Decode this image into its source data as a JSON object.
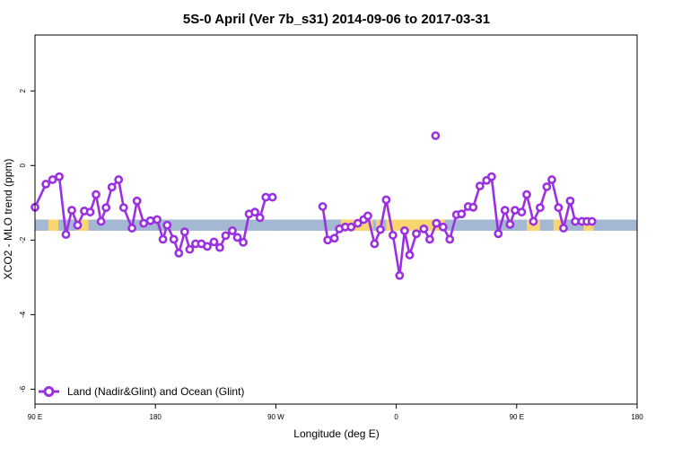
{
  "chart_data": {
    "type": "line",
    "title": "5S-0 April (Ver 7b_s31)   2014-09-06 to 2017-03-31",
    "xlabel": "Longitude (deg E)",
    "ylabel": "XCO2 - MLO trend (ppm)",
    "xlim": [
      90,
      450
    ],
    "ylim": [
      -6.4,
      3.5
    ],
    "x_ticks": [
      {
        "value": 90,
        "label": "90 E"
      },
      {
        "value": 162,
        "label": "180"
      },
      {
        "value": 234,
        "label": "90 W"
      },
      {
        "value": 306,
        "label": "0"
      },
      {
        "value": 378,
        "label": "90 E"
      },
      {
        "value": 450,
        "label": "180"
      }
    ],
    "y_ticks": [
      {
        "value": 2,
        "label": "2"
      },
      {
        "value": 0,
        "label": "0"
      },
      {
        "value": -2,
        "label": "-2"
      },
      {
        "value": -4,
        "label": "-4"
      },
      {
        "value": -6,
        "label": "-6"
      }
    ],
    "grid": false,
    "legend_position": "bottom-left",
    "surface_band": {
      "y_range": [
        -1.75,
        -1.45
      ],
      "ocean_color": "#a4b8d4",
      "land_color": "#f7d56f",
      "segments": [
        {
          "type": "ocean",
          "x": [
            90,
            98
          ]
        },
        {
          "type": "land",
          "x": [
            98,
            104
          ]
        },
        {
          "type": "ocean",
          "x": [
            104,
            115
          ]
        },
        {
          "type": "land",
          "x": [
            115,
            122
          ]
        },
        {
          "type": "ocean",
          "x": [
            122,
            233
          ]
        },
        {
          "type": "ocean",
          "x": [
            233,
            273
          ]
        },
        {
          "type": "land",
          "x": [
            273,
            292
          ]
        },
        {
          "type": "ocean",
          "x": [
            292,
            294
          ]
        },
        {
          "type": "land",
          "x": [
            294,
            296
          ]
        },
        {
          "type": "ocean",
          "x": [
            296,
            300
          ]
        },
        {
          "type": "land",
          "x": [
            300,
            335
          ]
        },
        {
          "type": "ocean",
          "x": [
            335,
            375
          ]
        },
        {
          "type": "ocean",
          "x": [
            375,
            384
          ]
        },
        {
          "type": "land",
          "x": [
            384,
            392
          ]
        },
        {
          "type": "ocean",
          "x": [
            392,
            400
          ]
        },
        {
          "type": "land",
          "x": [
            400,
            406
          ]
        },
        {
          "type": "ocean",
          "x": [
            406,
            418
          ]
        },
        {
          "type": "land",
          "x": [
            418,
            424
          ]
        },
        {
          "type": "ocean",
          "x": [
            424,
            450
          ]
        }
      ]
    },
    "series": [
      {
        "name": "Land (Nadir&Glint) and Ocean (Glint)",
        "color": "#9b30e0",
        "segments": [
          {
            "x": [
              90,
              96.5,
              100.5,
              104.5,
              108.5,
              112,
              115.5,
              119.5,
              123,
              126.5,
              129.5,
              132.5,
              136,
              140,
              143,
              148,
              151,
              155,
              159,
              163,
              166.5,
              169,
              173,
              176,
              179.5,
              182.5,
              186,
              189.5,
              193,
              197,
              200.5,
              204,
              208,
              211,
              214.5,
              218,
              221.5,
              224.5,
              228,
              232
            ],
            "y": [
              -1.12,
              -0.5,
              -0.38,
              -0.3,
              -1.85,
              -1.2,
              -1.6,
              -1.22,
              -1.25,
              -0.78,
              -1.5,
              -1.13,
              -0.58,
              -0.38,
              -1.13,
              -1.68,
              -0.95,
              -1.55,
              -1.48,
              -1.45,
              -1.98,
              -1.6,
              -1.98,
              -2.35,
              -1.78,
              -2.25,
              -2.1,
              -2.1,
              -2.17,
              -2.05,
              -2.2,
              -1.88,
              -1.75,
              -1.93,
              -2.06,
              -1.3,
              -1.25,
              -1.4,
              -0.85,
              -0.85
            ]
          },
          {
            "x": [
              262,
              265,
              269,
              272,
              275.5,
              279,
              283,
              286.5,
              289,
              293,
              296.5,
              300,
              304,
              308,
              311,
              314,
              318,
              322.5,
              326,
              330
            ],
            "y": [
              -1.1,
              -2.0,
              -1.95,
              -1.7,
              -1.65,
              -1.65,
              -1.55,
              -1.45,
              -1.35,
              -2.1,
              -1.72,
              -0.92,
              -1.87,
              -2.95,
              -1.75,
              -2.4,
              -1.83,
              -1.7,
              -1.98,
              -1.55
            ]
          },
          {
            "x": [
              330,
              334,
              338,
              342,
              345,
              349,
              352,
              356,
              360,
              363,
              367,
              371,
              374,
              377,
              381,
              384,
              388,
              392,
              396,
              399,
              403,
              406,
              410,
              413,
              417,
              420,
              423
            ],
            "y": [
              -1.55,
              -1.65,
              -1.98,
              -1.32,
              -1.3,
              -1.1,
              -1.12,
              -0.55,
              -0.4,
              -0.3,
              -1.83,
              -1.2,
              -1.58,
              -1.2,
              -1.25,
              -0.78,
              -1.5,
              -1.13,
              -0.57,
              -0.38,
              -1.13,
              -1.68,
              -0.95,
              -1.5,
              -1.5,
              -1.5,
              -1.5
            ]
          }
        ],
        "isolated_points": [
          {
            "x": 329.5,
            "y": 0.8
          }
        ]
      }
    ]
  }
}
